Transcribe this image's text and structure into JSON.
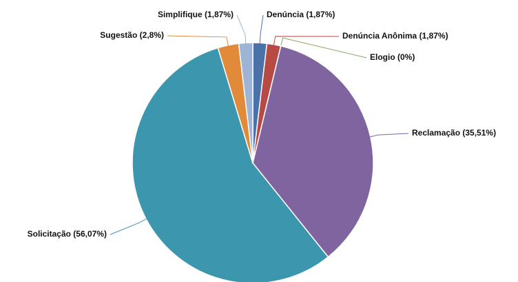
{
  "chart_data": {
    "type": "pie",
    "categories": [
      "Denúncia (1,87%)",
      "Denúncia Anônima (1,87%)",
      "Elogio (0%)",
      "Reclamação (35,51%)",
      "Solicitação (56,07%)",
      "Sugestão (2,8%)",
      "Simplifique (1,87%)"
    ],
    "values": [
      1.87,
      1.87,
      0,
      35.51,
      56.07,
      2.8,
      1.87
    ],
    "colors": [
      "#4a72a8",
      "#b84a45",
      "#8aa85a",
      "#8064a0",
      "#3b96ae",
      "#e08a3a",
      "#9db4d6"
    ]
  }
}
